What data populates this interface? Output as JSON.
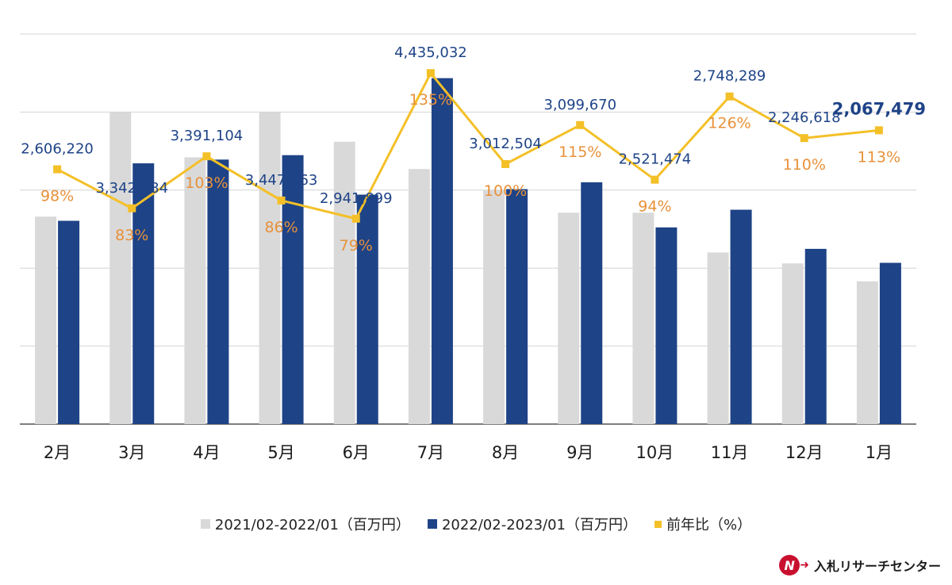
{
  "chart_data": {
    "type": "bar",
    "categories": [
      "2月",
      "3月",
      "4月",
      "5月",
      "6月",
      "7月",
      "8月",
      "9月",
      "10月",
      "11月",
      "12月",
      "1月"
    ],
    "bar_ylim": [
      0,
      5000000
    ],
    "line_ylim": [
      0,
      150
    ],
    "series": [
      {
        "name": "2021/02-2022/01（百万円）",
        "type": "bar",
        "color": "#d9d9d9",
        "values": [
          2660000,
          4000000,
          3420000,
          4000000,
          3620000,
          3270000,
          3000000,
          2710000,
          2710000,
          2200000,
          2060000,
          1830000
        ]
      },
      {
        "name": "2022/02-2023/01（百万円）",
        "type": "bar",
        "color": "#1e4387",
        "values": [
          2606220,
          3342984,
          3391104,
          3447863,
          2941899,
          4435032,
          3012504,
          3099670,
          2521474,
          2748289,
          2246618,
          2067479
        ],
        "labels": [
          "2,606,220",
          "3,342,984",
          "3,391,104",
          "3,447,863",
          "2,941,899",
          "4,435,032",
          "3,012,504",
          "3,099,670",
          "2,521,474",
          "2,748,289",
          "2,246,618",
          "2,067,479"
        ]
      },
      {
        "name": "前年比（%）",
        "type": "line",
        "color": "#f4c028",
        "values": [
          98,
          83,
          103,
          86,
          79,
          135,
          100,
          115,
          94,
          126,
          110,
          113
        ],
        "labels": [
          "98%",
          "83%",
          "103%",
          "86%",
          "79%",
          "135%",
          "100%",
          "115%",
          "94%",
          "126%",
          "110%",
          "113%"
        ]
      }
    ],
    "grid": true,
    "legend": "bottom"
  },
  "brand": {
    "name": "入札リサーチセンター",
    "logo_letter": "N"
  }
}
